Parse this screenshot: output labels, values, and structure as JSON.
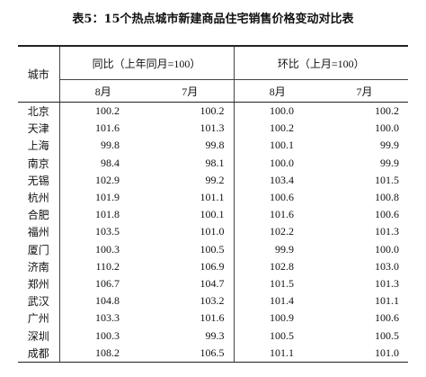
{
  "title": "表5：15个热点城市新建商品住宅销售价格变动对比表",
  "headers": {
    "city": "城市",
    "yoy": "同比（上年同月=100）",
    "mom": "环比（上月=100）",
    "aug": "8月",
    "jul": "7月"
  },
  "rows": [
    {
      "city": "北京",
      "yoy_aug": "100.2",
      "yoy_jul": "100.2",
      "mom_aug": "100.0",
      "mom_jul": "100.2"
    },
    {
      "city": "天津",
      "yoy_aug": "101.6",
      "yoy_jul": "101.3",
      "mom_aug": "100.2",
      "mom_jul": "100.0"
    },
    {
      "city": "上海",
      "yoy_aug": "99.8",
      "yoy_jul": "99.8",
      "mom_aug": "100.1",
      "mom_jul": "99.9"
    },
    {
      "city": "南京",
      "yoy_aug": "98.4",
      "yoy_jul": "98.1",
      "mom_aug": "100.0",
      "mom_jul": "99.9"
    },
    {
      "city": "无锡",
      "yoy_aug": "102.9",
      "yoy_jul": "99.2",
      "mom_aug": "103.4",
      "mom_jul": "101.5"
    },
    {
      "city": "杭州",
      "yoy_aug": "101.9",
      "yoy_jul": "101.1",
      "mom_aug": "100.6",
      "mom_jul": "100.8"
    },
    {
      "city": "合肥",
      "yoy_aug": "101.8",
      "yoy_jul": "100.1",
      "mom_aug": "101.6",
      "mom_jul": "100.6"
    },
    {
      "city": "福州",
      "yoy_aug": "103.5",
      "yoy_jul": "101.0",
      "mom_aug": "102.2",
      "mom_jul": "101.3"
    },
    {
      "city": "厦门",
      "yoy_aug": "100.3",
      "yoy_jul": "100.5",
      "mom_aug": "99.9",
      "mom_jul": "100.0"
    },
    {
      "city": "济南",
      "yoy_aug": "110.2",
      "yoy_jul": "106.9",
      "mom_aug": "102.8",
      "mom_jul": "103.0"
    },
    {
      "city": "郑州",
      "yoy_aug": "106.7",
      "yoy_jul": "104.7",
      "mom_aug": "101.5",
      "mom_jul": "101.3"
    },
    {
      "city": "武汉",
      "yoy_aug": "104.8",
      "yoy_jul": "103.2",
      "mom_aug": "101.4",
      "mom_jul": "101.1"
    },
    {
      "city": "广州",
      "yoy_aug": "103.3",
      "yoy_jul": "101.6",
      "mom_aug": "100.9",
      "mom_jul": "100.6"
    },
    {
      "city": "深圳",
      "yoy_aug": "100.3",
      "yoy_jul": "99.3",
      "mom_aug": "100.5",
      "mom_jul": "100.5"
    },
    {
      "city": "成都",
      "yoy_aug": "108.2",
      "yoy_jul": "106.5",
      "mom_aug": "101.1",
      "mom_jul": "101.0"
    }
  ]
}
